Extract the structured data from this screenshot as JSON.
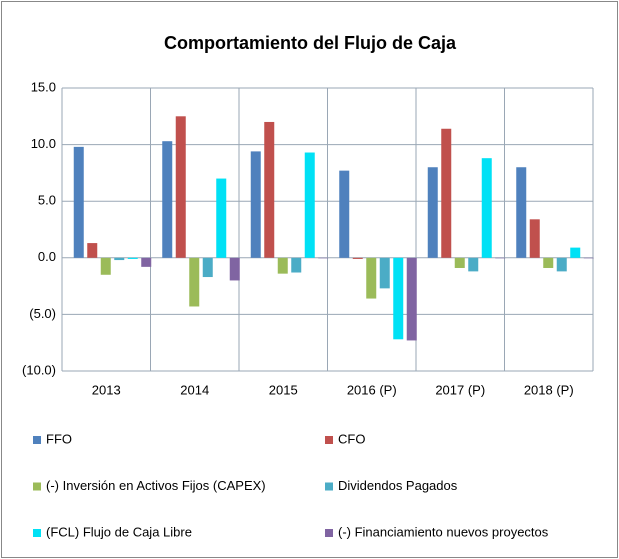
{
  "chart_data": {
    "type": "bar",
    "title": "Comportamiento del Flujo de Caja",
    "categories": [
      "2013",
      "2014",
      "2015",
      "2016 (P)",
      "2017 (P)",
      "2018 (P)"
    ],
    "series": [
      {
        "name": "FFO",
        "color": "#4f81bd",
        "values": [
          9.8,
          10.3,
          9.4,
          7.7,
          8.0,
          8.0
        ]
      },
      {
        "name": "CFO",
        "color": "#c0504d",
        "values": [
          1.3,
          12.5,
          12.0,
          -0.1,
          11.4,
          3.4
        ]
      },
      {
        "name": "(-) Inversión en Activos Fijos (CAPEX)",
        "color": "#9bbb59",
        "values": [
          -1.5,
          -4.3,
          -1.4,
          -3.6,
          -0.9,
          -0.9
        ]
      },
      {
        "name": "Dividendos Pagados",
        "color": "#4bacc6",
        "values": [
          -0.2,
          -1.7,
          -1.3,
          -2.7,
          -1.2,
          -1.2
        ]
      },
      {
        "name": "(FCL) Flujo de Caja Libre",
        "color": "#00e1f5",
        "values": [
          -0.1,
          7.0,
          9.3,
          -7.2,
          8.8,
          0.9
        ]
      },
      {
        "name": "(-) Financiamiento nuevos proyectos",
        "color": "#8064a2",
        "values": [
          -0.8,
          -2.0,
          0,
          -7.3,
          0,
          0
        ]
      }
    ],
    "ylim": [
      -10,
      15
    ],
    "yticks": [
      {
        "value": -10,
        "label": "(10.0)"
      },
      {
        "value": -5,
        "label": "(5.0)"
      },
      {
        "value": 0,
        "label": "0.0"
      },
      {
        "value": 5,
        "label": "5.0"
      },
      {
        "value": 10,
        "label": "10.0"
      },
      {
        "value": 15,
        "label": "15.0"
      }
    ],
    "grid": true
  }
}
